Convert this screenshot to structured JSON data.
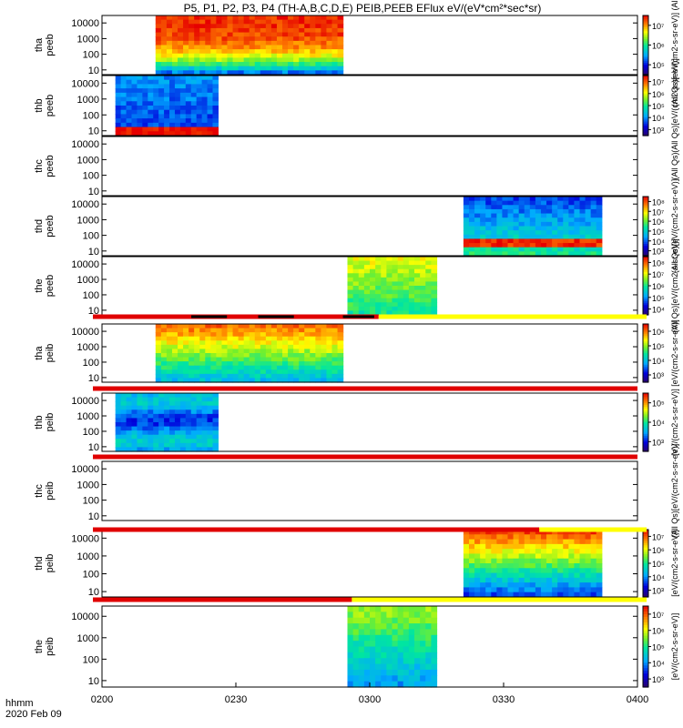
{
  "chart_data": {
    "type": "heatmap",
    "title": "P5, P1, P2, P3, P4 (TH-A,B,C,D,E) PEIB,PEEB EFlux eV/(eV*cm²*sec*sr)",
    "x_label_line1": "hhmm",
    "x_label_line2": "2020 Feb 09",
    "x_range_minutes": [
      0,
      120
    ],
    "x_ticks": [
      {
        "minute": 0,
        "label": "0200"
      },
      {
        "minute": 30,
        "label": "0230"
      },
      {
        "minute": 60,
        "label": "0300"
      },
      {
        "minute": 90,
        "label": "0330"
      },
      {
        "minute": 120,
        "label": "0400"
      }
    ],
    "y_axis_energy_eV": {
      "range": [
        5,
        30000
      ],
      "scale": "log",
      "tick_labels": [
        "10",
        "100",
        "1000",
        "10000"
      ]
    },
    "panels": [
      {
        "ylabel1": "tha",
        "ylabel2": "peeb",
        "data": [
          12,
          54
        ],
        "colorbar": {
          "labels": [
            "10⁵",
            "10⁶",
            "10⁷"
          ],
          "title": "(All Qs)[eV/(cm2-s-sr-eV)] (All Qs)"
        }
      },
      {
        "ylabel1": "thb",
        "ylabel2": "peeb",
        "data": [
          3,
          26
        ],
        "colorbar": {
          "labels": [
            "10³",
            "10⁴",
            "10⁵",
            "10⁶",
            "10⁷"
          ],
          "title": "(All Qs)[eV/(cm2-s-sr-eV)]"
        }
      },
      {
        "ylabel1": "thc",
        "ylabel2": "peeb",
        "data": null,
        "colorbar": {
          "labels": [],
          "title": "(All Qs)"
        }
      },
      {
        "ylabel1": "thd",
        "ylabel2": "peeb",
        "data": [
          81,
          112
        ],
        "colorbar": {
          "labels": [
            "10³",
            "10⁴",
            "10⁵",
            "10⁶",
            "10⁷",
            "10⁸"
          ],
          "title": "(All Qs)[eV/(cm2-s-sr-eV)]"
        }
      },
      {
        "ylabel1": "the",
        "ylabel2": "peeb",
        "data": [
          55,
          75
        ],
        "colorbar": {
          "labels": [
            "10⁴",
            "10⁵",
            "10⁶",
            "10⁷",
            "10⁸"
          ],
          "title": "(All Qs)[eV/(cm2-s-sr-eV)]"
        }
      },
      {
        "ylabel1": "tha",
        "ylabel2": "peib",
        "data": [
          12,
          54
        ],
        "colorbar": {
          "labels": [
            "10³",
            "10⁴",
            "10⁵",
            "10⁶"
          ],
          "title": "[eV/(cm2-s-sr-eV)]"
        }
      },
      {
        "ylabel1": "thb",
        "ylabel2": "peib",
        "data": [
          3,
          26
        ],
        "colorbar": {
          "labels": [
            "10³",
            "10⁴",
            "10⁵"
          ],
          "title": "[eV/(cm2-s-sr-eV)]"
        }
      },
      {
        "ylabel1": "thc",
        "ylabel2": "peib",
        "data": null,
        "colorbar": {
          "labels": [],
          "title": "(All Qs)[eV/(cm2-s-sr-eV)]"
        }
      },
      {
        "ylabel1": "thd",
        "ylabel2": "peib",
        "data": [
          81,
          112
        ],
        "colorbar": {
          "labels": [
            "10³",
            "10⁴",
            "10⁵",
            "10⁶",
            "10⁷"
          ],
          "title": "[eV/(cm2-s-sr-eV)]"
        }
      },
      {
        "ylabel1": "the",
        "ylabel2": "peib",
        "data": [
          55,
          75
        ],
        "colorbar": {
          "labels": [
            "10³",
            "10⁴",
            "10⁵",
            "10⁶",
            "10⁷"
          ],
          "title": "[eV/(cm2-s-sr-eV)]"
        }
      }
    ],
    "status_bars": [
      {
        "between": "the peeb / tha peib",
        "red_until_minute": 62,
        "dark_segments": [
          [
            20,
            28
          ],
          [
            35,
            43
          ],
          [
            54,
            61
          ]
        ]
      },
      {
        "between": "tha peib / thb peib",
        "red_until_minute": 120,
        "dark_segments": []
      },
      {
        "between": "thb peib / thc peib",
        "red_until_minute": 120,
        "dark_segments": []
      },
      {
        "between": "thc peib / thd peib",
        "red_until_minute": 98,
        "dark_segments": []
      },
      {
        "between": "thd peib / the peib",
        "red_until_minute": 56,
        "dark_segments": []
      }
    ]
  }
}
